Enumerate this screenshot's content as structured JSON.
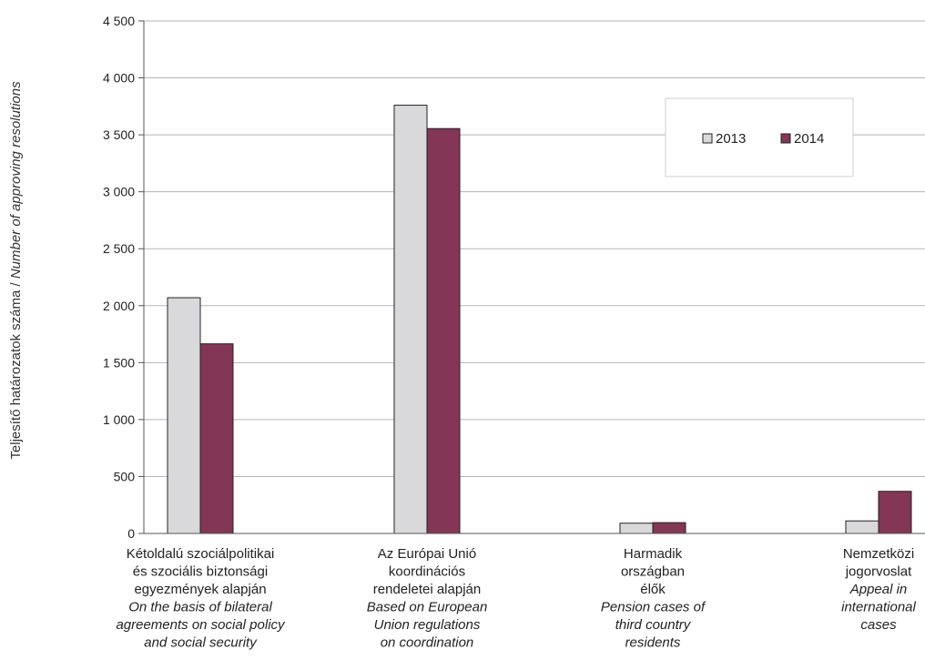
{
  "chart_data": {
    "type": "bar",
    "ylabel": "Teljesítő határozatok száma / Number of approving resolutions",
    "ylabel_hu": "Teljesítő határozatok száma / ",
    "ylabel_en": "Number of approving resolutions",
    "ylim": [
      0,
      4500
    ],
    "yticks": [
      0,
      500,
      1000,
      1500,
      2000,
      2500,
      3000,
      3500,
      4000,
      4500
    ],
    "ytick_labels": [
      "0",
      "500",
      "1 000",
      "1 500",
      "2 000",
      "2 500",
      "3 000",
      "3 500",
      "4 000",
      "4 500"
    ],
    "grid": true,
    "legend_position": "top-right",
    "categories": [
      {
        "hu": [
          "Kétoldalú szociálpolitikai",
          "és szociális biztonsági",
          "egyezmények alapján"
        ],
        "en": [
          "On the basis of bilateral",
          "agreements on social policy",
          "and social security"
        ]
      },
      {
        "hu": [
          "Az Európai Unió",
          "koordinációs",
          "rendeletei alapján"
        ],
        "en": [
          "Based on European",
          "Union regulations",
          "on coordination"
        ]
      },
      {
        "hu": [
          "Harmadik",
          "országban",
          "élők"
        ],
        "en": [
          "Pension cases of",
          "third country",
          "residents"
        ]
      },
      {
        "hu": [
          "Nemzetközi",
          "jogorvoslat"
        ],
        "en": [
          "Appeal in",
          "international",
          "cases"
        ]
      }
    ],
    "series": [
      {
        "name": "2013",
        "color": "#d9d9db",
        "values": [
          2070,
          3760,
          90,
          110
        ]
      },
      {
        "name": "2014",
        "color": "#833655",
        "values": [
          1665,
          3555,
          95,
          370
        ]
      }
    ]
  }
}
